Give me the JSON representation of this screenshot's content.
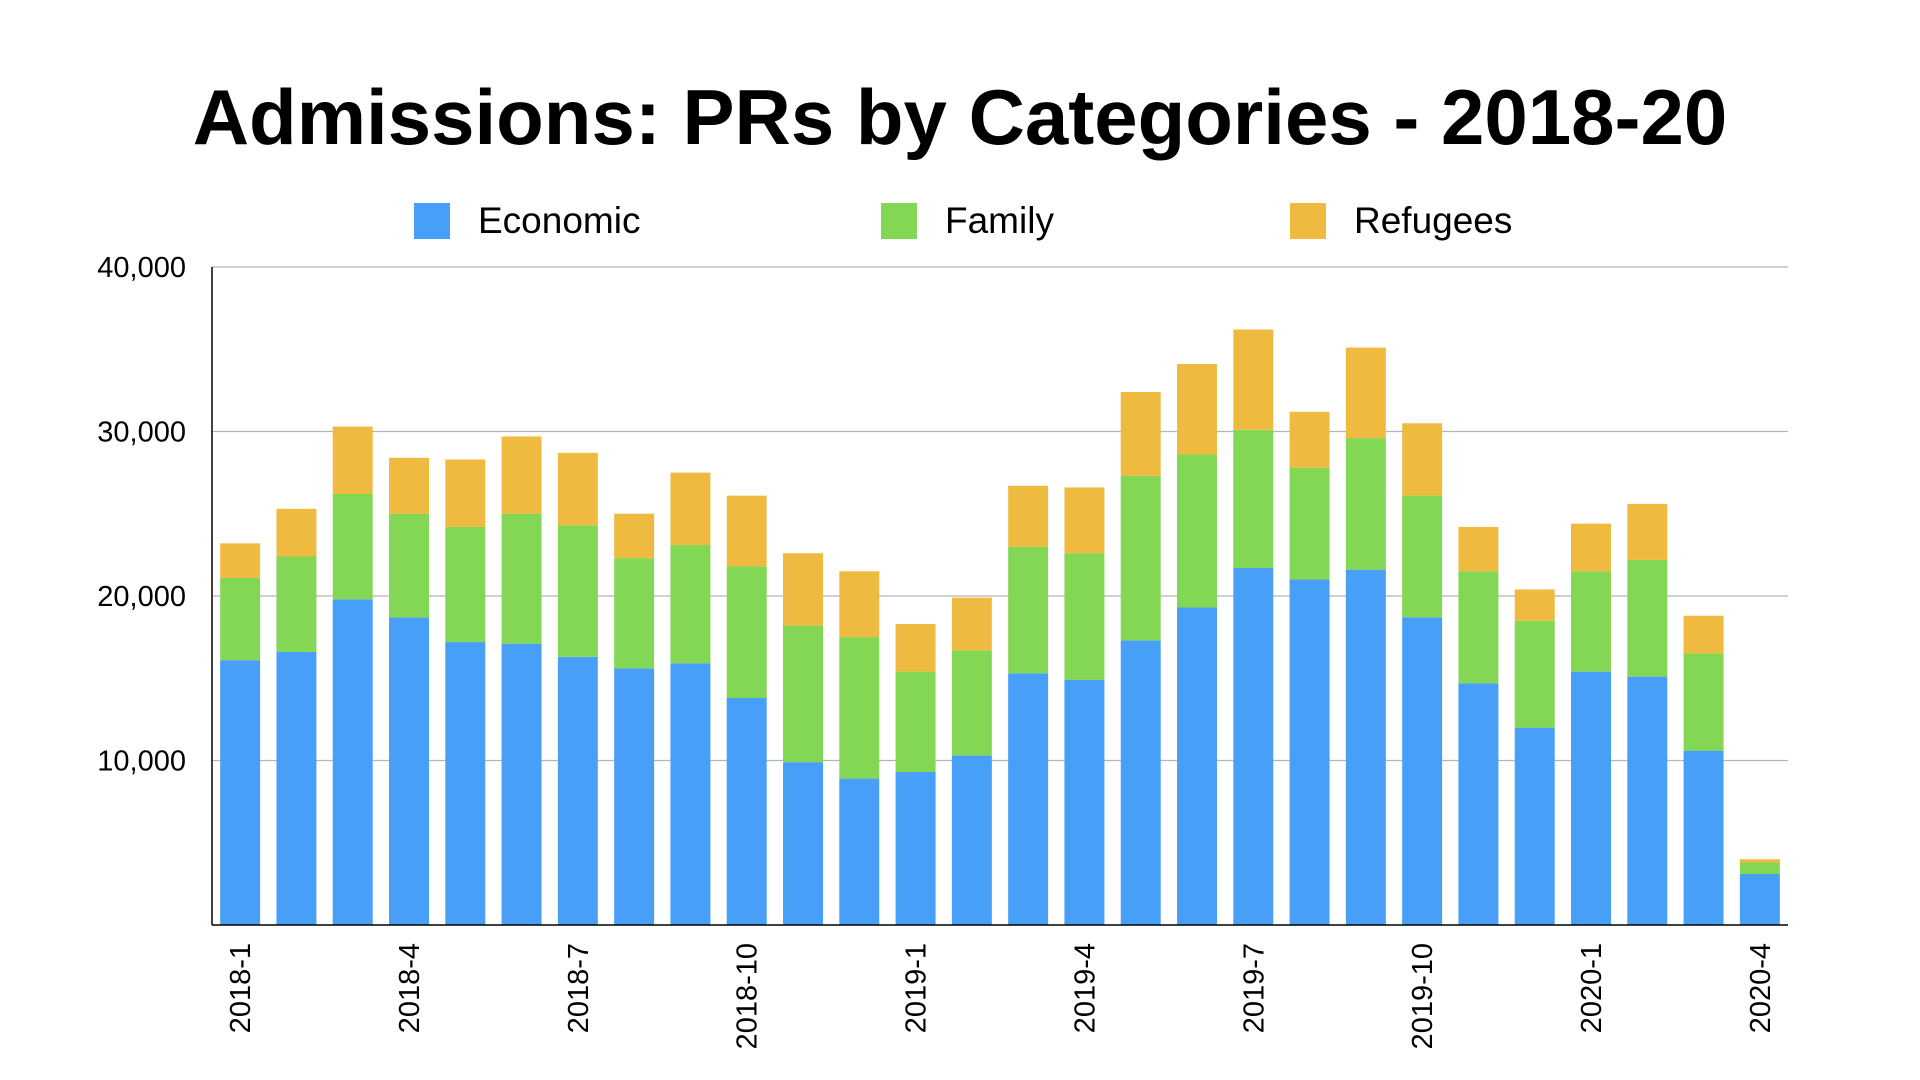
{
  "chart_data": {
    "type": "bar",
    "stacked": true,
    "title": "Admissions: PRs by Categories - 2018-20",
    "xlabel": "",
    "ylabel": "",
    "ylim": [
      0,
      40000
    ],
    "yticks": [
      10000,
      20000,
      30000,
      40000
    ],
    "ytick_labels": [
      "10,000",
      "20,000",
      "30,000",
      "40,000"
    ],
    "grid": true,
    "legend_position": "top-center",
    "categories": [
      "2018-1",
      "2018-2",
      "2018-3",
      "2018-4",
      "2018-5",
      "2018-6",
      "2018-7",
      "2018-8",
      "2018-9",
      "2018-10",
      "2018-11",
      "2018-12",
      "2019-1",
      "2019-2",
      "2019-3",
      "2019-4",
      "2019-5",
      "2019-6",
      "2019-7",
      "2019-8",
      "2019-9",
      "2019-10",
      "2019-11",
      "2019-12",
      "2020-1",
      "2020-2",
      "2020-3",
      "2020-4"
    ],
    "xtick_labels": [
      "2018-1",
      "",
      "",
      "2018-4",
      "",
      "",
      "2018-7",
      "",
      "",
      "2018-10",
      "",
      "",
      "2019-1",
      "",
      "",
      "2019-4",
      "",
      "",
      "2019-7",
      "",
      "",
      "2019-10",
      "",
      "",
      "2020-1",
      "",
      "",
      "2020-4"
    ],
    "series": [
      {
        "name": "Economic",
        "color": "#489ff7",
        "values": [
          16100,
          16600,
          19800,
          18700,
          17200,
          17100,
          16300,
          15600,
          15900,
          13800,
          9900,
          8900,
          9300,
          10300,
          15300,
          14900,
          17300,
          19300,
          21700,
          21000,
          21600,
          18700,
          14700,
          12000,
          15400,
          15100,
          10600,
          3100
        ]
      },
      {
        "name": "Family",
        "color": "#84d655",
        "values": [
          5000,
          5800,
          6400,
          6300,
          7000,
          7900,
          8000,
          6700,
          7200,
          8000,
          8300,
          8600,
          6100,
          6400,
          7700,
          7700,
          10000,
          9300,
          8400,
          6800,
          8000,
          7400,
          6800,
          6500,
          6100,
          7100,
          5900,
          700
        ]
      },
      {
        "name": "Refugees",
        "color": "#eebb40",
        "values": [
          2100,
          2900,
          4100,
          3400,
          4100,
          4700,
          4400,
          2700,
          4400,
          4300,
          4400,
          4000,
          2900,
          3200,
          3700,
          4000,
          5100,
          5500,
          6100,
          3400,
          5500,
          4400,
          2700,
          1900,
          2900,
          3400,
          2300,
          200
        ]
      }
    ]
  }
}
